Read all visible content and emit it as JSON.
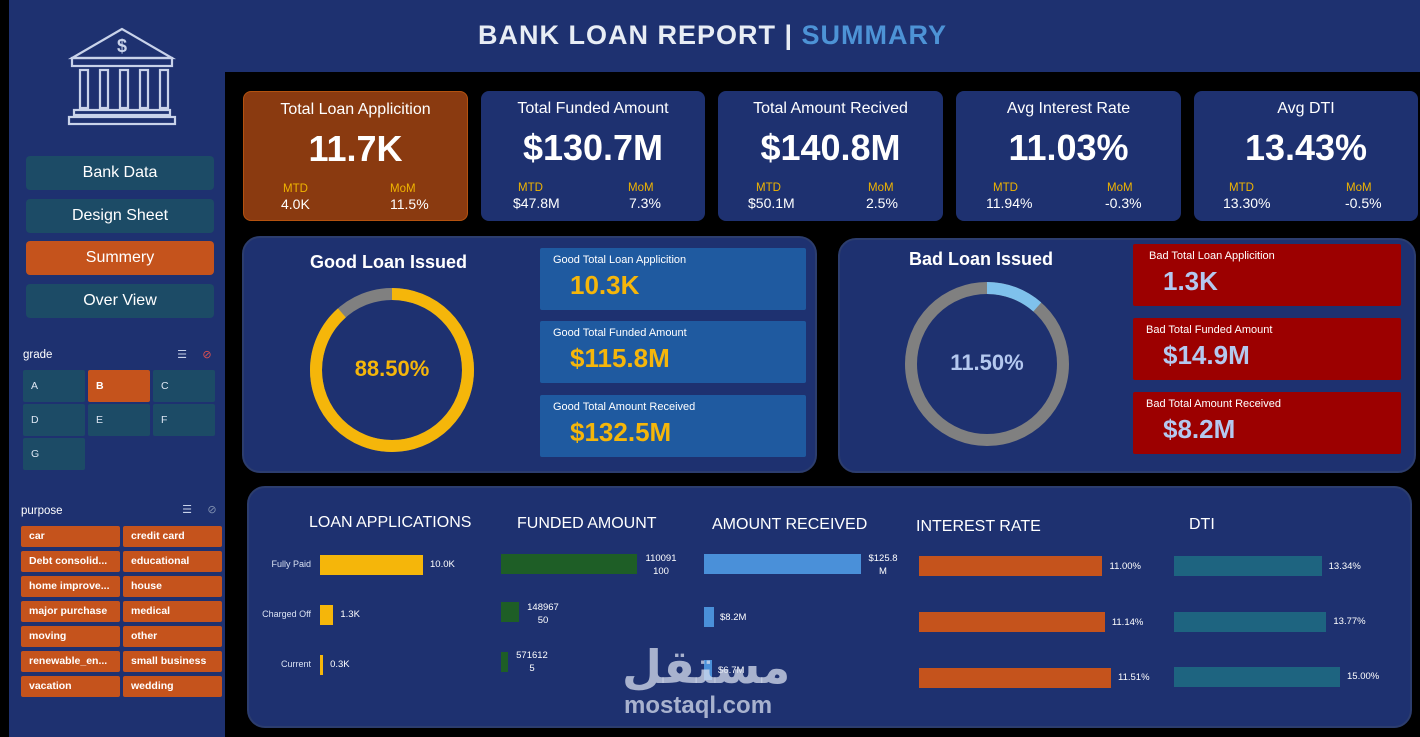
{
  "header": {
    "title_main": "BANK LOAN REPORT |",
    "title_accent": "SUMMARY"
  },
  "nav": {
    "items": [
      {
        "label": "Bank Data",
        "active": false
      },
      {
        "label": "Design Sheet",
        "active": false
      },
      {
        "label": "Summery",
        "active": true
      },
      {
        "label": "Over View",
        "active": false
      }
    ]
  },
  "grade_slicer": {
    "label": "grade",
    "items": [
      "A",
      "B",
      "C",
      "D",
      "E",
      "F",
      "G"
    ],
    "selected": "B"
  },
  "purpose_slicer": {
    "label": "purpose",
    "items": [
      "car",
      "credit card",
      "Debt consolid...",
      "educational",
      "home improve...",
      "house",
      "major purchase",
      "medical",
      "moving",
      "other",
      "renewable_en...",
      "small business",
      "vacation",
      "wedding"
    ]
  },
  "kpis": [
    {
      "title": "Total Loan Applicition",
      "value": "11.7K",
      "mtd_label": "MTD",
      "mtd": "4.0K",
      "mom_label": "MoM",
      "mom": "11.5%"
    },
    {
      "title": "Total Funded Amount",
      "value": "$130.7M",
      "mtd_label": "MTD",
      "mtd": "$47.8M",
      "mom_label": "MoM",
      "mom": "7.3%"
    },
    {
      "title": "Total Amount Recived",
      "value": "$140.8M",
      "mtd_label": "MTD",
      "mtd": "$50.1M",
      "mom_label": "MoM",
      "mom": "2.5%"
    },
    {
      "title": "Avg Interest Rate",
      "value": "11.03%",
      "mtd_label": "MTD",
      "mtd": "11.94%",
      "mom_label": "MoM",
      "mom": "-0.3%"
    },
    {
      "title": "Avg DTI",
      "value": "13.43%",
      "mtd_label": "MTD",
      "mtd": "13.30%",
      "mom_label": "MoM",
      "mom": "-0.5%"
    }
  ],
  "good_loan": {
    "title": "Good Loan Issued",
    "percent_label": "88.50%",
    "percent": 88.5,
    "cards": [
      {
        "caption": "Good Total Loan Applicition",
        "value": "10.3K"
      },
      {
        "caption": "Good Total Funded Amount",
        "value": "$115.8M"
      },
      {
        "caption": "Good Total Amount Received",
        "value": "$132.5M"
      }
    ]
  },
  "bad_loan": {
    "title": "Bad Loan Issued",
    "percent_label": "11.50%",
    "percent": 11.5,
    "cards": [
      {
        "caption": "Bad Total Loan Applicition",
        "value": "1.3K"
      },
      {
        "caption": "Bad Total Funded Amount",
        "value": "$14.9M"
      },
      {
        "caption": "Bad Total Amount Received",
        "value": "$8.2M"
      }
    ]
  },
  "status_charts": {
    "rows": [
      "Fully Paid",
      "Charged Off",
      "Current"
    ],
    "loan_applications": {
      "title": "LOAN APPLICATIONS",
      "values": [
        10000,
        1300,
        300
      ],
      "labels": [
        "10.0K",
        "1.3K",
        "0.3K"
      ]
    },
    "funded_amount": {
      "title": "FUNDED AMOUNT",
      "values": [
        110091100,
        14896750,
        5716125
      ],
      "labels": [
        [
          "110091",
          "100"
        ],
        [
          "148967",
          "50"
        ],
        [
          "571612",
          "5"
        ]
      ]
    },
    "amount_received": {
      "title": "AMOUNT RECEIVED",
      "values": [
        125.8,
        8.2,
        6.7
      ],
      "labels": [
        [
          "$125.8",
          "M"
        ],
        [
          "$8.2M"
        ],
        [
          "$6.7M"
        ]
      ]
    },
    "interest_rate": {
      "title": "INTEREST RATE",
      "values": [
        11.0,
        11.14,
        11.51
      ],
      "labels": [
        "11.00%",
        "11.14%",
        "11.51%"
      ]
    },
    "dti": {
      "title": "DTI",
      "values": [
        13.34,
        13.77,
        15.0
      ],
      "labels": [
        "13.34%",
        "13.77%",
        "15.00%"
      ]
    }
  },
  "watermark": {
    "arabic": "مستقل",
    "latin": "mostaql.com"
  },
  "colors": {
    "navy": "#1e3170",
    "orange": "#c5531c",
    "teal": "#1c4b66",
    "gold": "#f5b60a",
    "blue": "#1f5aa0",
    "red": "#9c0000",
    "green": "#1e5e26",
    "lightblue": "#4a90d9",
    "dtiteal": "#1e6480"
  }
}
